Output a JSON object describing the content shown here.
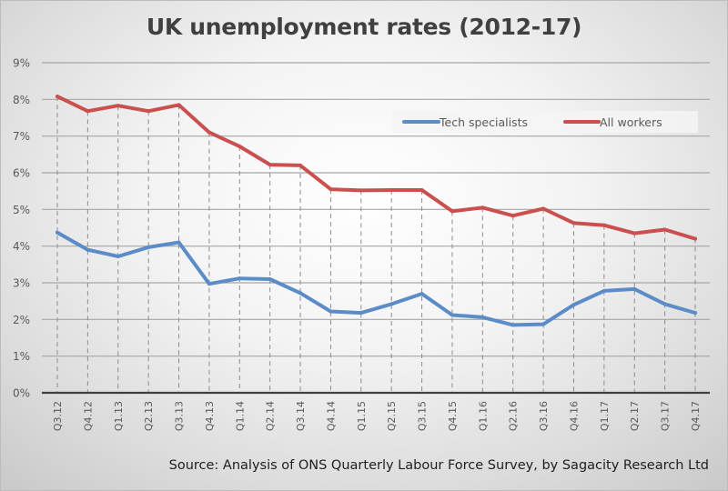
{
  "chart_data": {
    "type": "line",
    "title": "UK unemployment rates (2012-17)",
    "source": "Source: Analysis of ONS Quarterly Labour Force Survey, by Sagacity Research Ltd",
    "xlabel": "",
    "ylabel": "",
    "ylim": [
      0,
      9
    ],
    "yticks": [
      "0%",
      "1%",
      "2%",
      "3%",
      "4%",
      "5%",
      "6%",
      "7%",
      "8%",
      "9%"
    ],
    "grid": true,
    "legend_position": "top-right",
    "categories": [
      "Q3.12",
      "Q4.12",
      "Q1.13",
      "Q2.13",
      "Q3.13",
      "Q4.13",
      "Q1.14",
      "Q2.14",
      "Q3.14",
      "Q4.14",
      "Q1.15",
      "Q2.15",
      "Q3.15",
      "Q4.15",
      "Q1.16",
      "Q2.16",
      "Q3.16",
      "Q4.16",
      "Q1.17",
      "Q2.17",
      "Q3.17",
      "Q4.17"
    ],
    "series": [
      {
        "name": "Tech specialists",
        "color": "#5b8cc8",
        "values": [
          4.37,
          3.9,
          3.72,
          3.97,
          4.1,
          2.97,
          3.12,
          3.1,
          2.72,
          2.22,
          2.18,
          2.42,
          2.7,
          2.12,
          2.06,
          1.85,
          1.87,
          2.4,
          2.78,
          2.83,
          2.42,
          2.18
        ]
      },
      {
        "name": "All workers",
        "color": "#c9504e",
        "values": [
          8.08,
          7.68,
          7.83,
          7.68,
          7.85,
          7.1,
          6.72,
          6.22,
          6.2,
          5.55,
          5.52,
          5.53,
          5.53,
          4.95,
          5.05,
          4.83,
          5.02,
          4.63,
          4.57,
          4.35,
          4.45,
          4.2
        ]
      }
    ]
  }
}
